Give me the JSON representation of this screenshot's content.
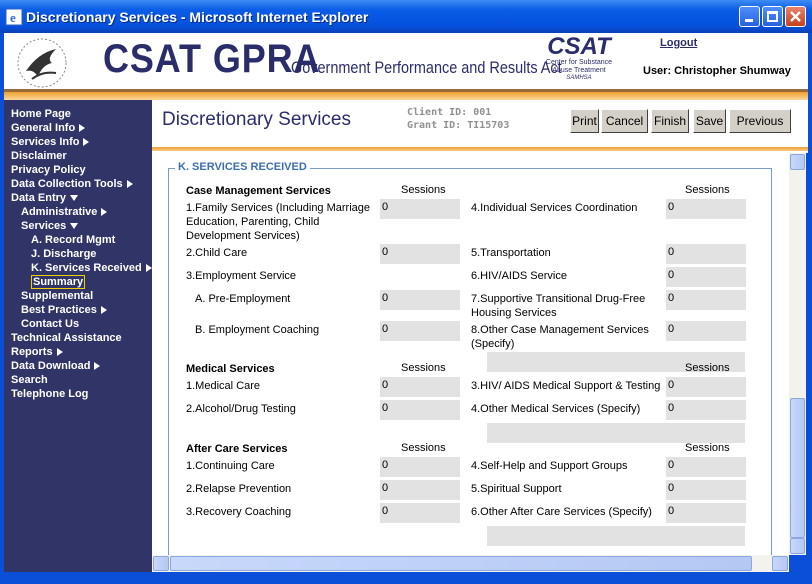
{
  "window": {
    "title": "Discretionary Services - Microsoft Internet Explorer"
  },
  "header": {
    "title": "CSAT GPRA",
    "subtitle": "Government Performance and Results Act",
    "logo": {
      "name": "CSAT",
      "lines": [
        "Center for Substance",
        "Abuse Treatment",
        "SAMHSA"
      ]
    },
    "logout": "Logout",
    "user": "User: Christopher Shumway"
  },
  "nav": [
    {
      "label": "Home Page"
    },
    {
      "label": "General Info",
      "arrow": "right"
    },
    {
      "label": "Services Info",
      "arrow": "right"
    },
    {
      "label": "Disclaimer"
    },
    {
      "label": "Privacy Policy"
    },
    {
      "label": "Data Collection Tools",
      "arrow": "right"
    },
    {
      "label": "Data Entry",
      "arrow": "down",
      "children": [
        {
          "label": "Administrative",
          "arrow": "right"
        },
        {
          "label": "Services",
          "arrow": "down",
          "children": [
            {
              "label": "A. Record Mgmt"
            },
            {
              "label": "J. Discharge"
            },
            {
              "label": "K. Services Received",
              "arrow": "right"
            },
            {
              "label": "Summary",
              "selected": true
            }
          ]
        },
        {
          "label": "Supplemental"
        },
        {
          "label": "Best Practices",
          "arrow": "right"
        },
        {
          "label": "Contact Us"
        }
      ]
    },
    {
      "label": "Technical Assistance"
    },
    {
      "label": "Reports",
      "arrow": "right"
    },
    {
      "label": "Data Download",
      "arrow": "right"
    },
    {
      "label": "Search"
    },
    {
      "label": "Telephone Log"
    }
  ],
  "page": {
    "title": "Discretionary Services",
    "client_id": "Client ID: 001",
    "grant_id": "Grant ID: TI15703",
    "buttons": [
      "Print",
      "Cancel",
      "Finish",
      "Save",
      "Previous"
    ]
  },
  "form": {
    "legend": "K. SERVICES RECEIVED",
    "groups": [
      {
        "title": "Case Management Services",
        "sessions_label": "Sessions",
        "rows": [
          {
            "left": {
              "label": "1.Family Services (Including Marriage Education, Parenting, Child Development Services)",
              "value": 0
            },
            "right": {
              "label": "4.Individual Services Coordination",
              "value": 0
            }
          },
          {
            "left": {
              "label": "2.Child Care",
              "value": 0
            },
            "right": {
              "label": "5.Transportation",
              "value": 0
            }
          },
          {
            "left": {
              "label": "3.Employment Service",
              "value": null
            },
            "right": {
              "label": "6.HIV/AIDS Service",
              "value": 0
            }
          },
          {
            "left": {
              "label": "A. Pre-Employment",
              "value": 0,
              "indent": true
            },
            "right": {
              "label": "7.Supportive Transitional Drug-Free Housing Services",
              "value": 0
            }
          },
          {
            "left": {
              "label": "B. Employment Coaching",
              "value": 0,
              "indent": true
            },
            "right": {
              "label": "8.Other Case Management Services (Specify)",
              "value": 0,
              "specify": true
            }
          }
        ]
      },
      {
        "title": "Medical Services",
        "sessions_label": "Sessions",
        "rows": [
          {
            "left": {
              "label": "1.Medical Care",
              "value": 0
            },
            "right": {
              "label": "3.HIV/ AIDS Medical Support & Testing",
              "value": 0
            }
          },
          {
            "left": {
              "label": "2.Alcohol/Drug Testing",
              "value": 0
            },
            "right": {
              "label": "4.Other Medical Services (Specify)",
              "value": 0,
              "specify": true
            }
          }
        ]
      },
      {
        "title": "After Care Services",
        "sessions_label": "Sessions",
        "rows": [
          {
            "left": {
              "label": "1.Continuing Care",
              "value": 0
            },
            "right": {
              "label": "4.Self-Help and Support Groups",
              "value": 0
            }
          },
          {
            "left": {
              "label": "2.Relapse Prevention",
              "value": 0
            },
            "right": {
              "label": "5.Spiritual Support",
              "value": 0
            }
          },
          {
            "left": {
              "label": "3.Recovery Coaching",
              "value": 0
            },
            "right": {
              "label": "6.Other After Care Services (Specify)",
              "value": 0,
              "specify": true
            }
          }
        ]
      }
    ]
  }
}
